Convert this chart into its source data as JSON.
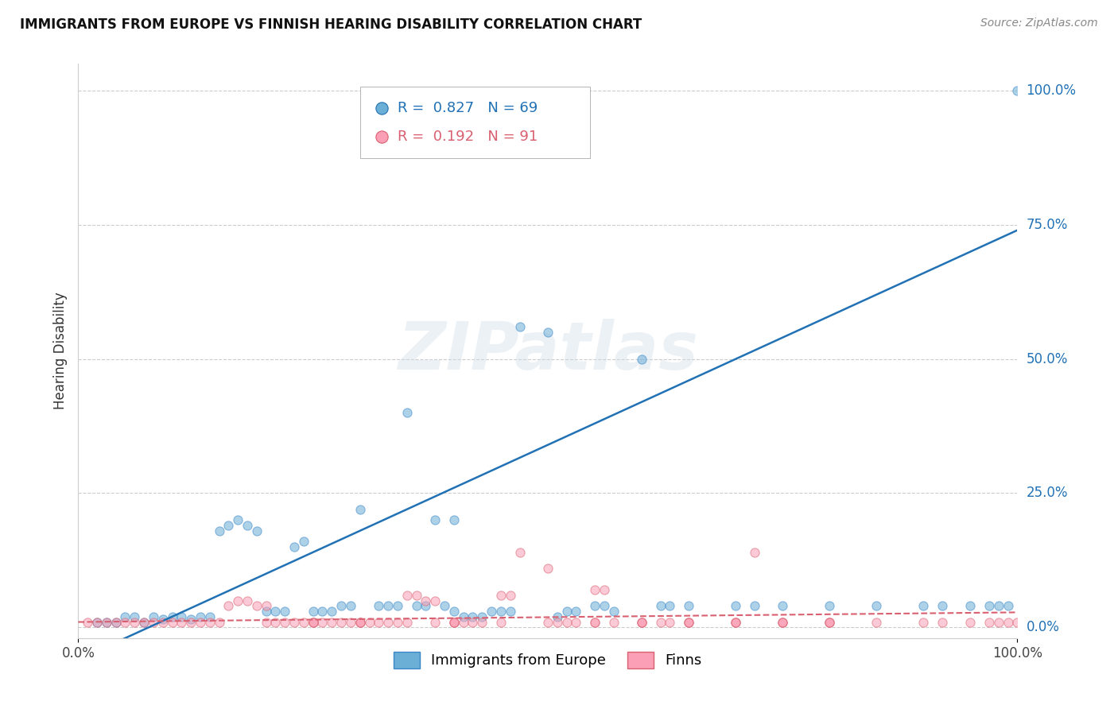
{
  "title": "IMMIGRANTS FROM EUROPE VS FINNISH HEARING DISABILITY CORRELATION CHART",
  "source": "Source: ZipAtlas.com",
  "ylabel": "Hearing Disability",
  "xlim": [
    0.0,
    1.0
  ],
  "ylim": [
    -0.02,
    1.05
  ],
  "ytick_labels": [
    "0.0%",
    "25.0%",
    "50.0%",
    "75.0%",
    "100.0%"
  ],
  "ytick_values": [
    0.0,
    0.25,
    0.5,
    0.75,
    1.0
  ],
  "xtick_labels": [
    "0.0%",
    "100.0%"
  ],
  "xtick_values": [
    0.0,
    1.0
  ],
  "grid_color": "#cccccc",
  "background_color": "#ffffff",
  "watermark": "ZIPatlas",
  "blue_R": 0.827,
  "blue_N": 69,
  "pink_R": 0.192,
  "pink_N": 91,
  "blue_color": "#6baed6",
  "pink_color": "#fa9fb5",
  "blue_line_color": "#2171b5",
  "pink_line_color": "#d96070",
  "blue_edge_color": "#3a87c8",
  "pink_edge_color": "#d96070",
  "blue_scatter_x": [
    0.02,
    0.03,
    0.04,
    0.05,
    0.06,
    0.07,
    0.08,
    0.09,
    0.1,
    0.11,
    0.12,
    0.13,
    0.14,
    0.15,
    0.16,
    0.17,
    0.18,
    0.19,
    0.2,
    0.21,
    0.22,
    0.23,
    0.24,
    0.25,
    0.26,
    0.27,
    0.28,
    0.29,
    0.3,
    0.32,
    0.33,
    0.34,
    0.35,
    0.36,
    0.37,
    0.38,
    0.4,
    0.41,
    0.42,
    0.43,
    0.44,
    0.45,
    0.46,
    0.47,
    0.5,
    0.51,
    0.52,
    0.53,
    0.55,
    0.56,
    0.57,
    0.6,
    0.62,
    0.63,
    0.65,
    0.7,
    0.72,
    0.75,
    0.8,
    0.85,
    0.9,
    0.92,
    0.95,
    0.97,
    0.98,
    0.99,
    1.0,
    0.39,
    0.4
  ],
  "blue_scatter_y": [
    0.01,
    0.01,
    0.01,
    0.02,
    0.02,
    0.01,
    0.02,
    0.015,
    0.02,
    0.02,
    0.015,
    0.02,
    0.02,
    0.18,
    0.19,
    0.2,
    0.19,
    0.18,
    0.03,
    0.03,
    0.03,
    0.15,
    0.16,
    0.03,
    0.03,
    0.03,
    0.04,
    0.04,
    0.22,
    0.04,
    0.04,
    0.04,
    0.4,
    0.04,
    0.04,
    0.2,
    0.2,
    0.02,
    0.02,
    0.02,
    0.03,
    0.03,
    0.03,
    0.56,
    0.55,
    0.02,
    0.03,
    0.03,
    0.04,
    0.04,
    0.03,
    0.5,
    0.04,
    0.04,
    0.04,
    0.04,
    0.04,
    0.04,
    0.04,
    0.04,
    0.04,
    0.04,
    0.04,
    0.04,
    0.04,
    0.04,
    1.0,
    0.04,
    0.03
  ],
  "pink_scatter_x": [
    0.01,
    0.02,
    0.03,
    0.04,
    0.05,
    0.06,
    0.07,
    0.08,
    0.09,
    0.1,
    0.11,
    0.12,
    0.13,
    0.14,
    0.15,
    0.16,
    0.17,
    0.18,
    0.19,
    0.2,
    0.21,
    0.22,
    0.23,
    0.24,
    0.25,
    0.26,
    0.27,
    0.28,
    0.29,
    0.3,
    0.31,
    0.32,
    0.33,
    0.34,
    0.35,
    0.36,
    0.37,
    0.38,
    0.4,
    0.41,
    0.42,
    0.43,
    0.45,
    0.46,
    0.47,
    0.5,
    0.51,
    0.52,
    0.53,
    0.55,
    0.56,
    0.57,
    0.6,
    0.62,
    0.63,
    0.65,
    0.7,
    0.72,
    0.75,
    0.8,
    0.85,
    0.9,
    0.92,
    0.95,
    0.97,
    0.98,
    0.99,
    1.0,
    0.38,
    0.4,
    0.25,
    0.3,
    0.35,
    0.4,
    0.45,
    0.5,
    0.55,
    0.6,
    0.65,
    0.7,
    0.75,
    0.8,
    0.6,
    0.65,
    0.7,
    0.75,
    0.8,
    0.55,
    0.2,
    0.25,
    0.3
  ],
  "pink_scatter_y": [
    0.01,
    0.01,
    0.01,
    0.01,
    0.01,
    0.01,
    0.01,
    0.01,
    0.01,
    0.01,
    0.01,
    0.01,
    0.01,
    0.01,
    0.01,
    0.04,
    0.05,
    0.05,
    0.04,
    0.04,
    0.01,
    0.01,
    0.01,
    0.01,
    0.01,
    0.01,
    0.01,
    0.01,
    0.01,
    0.01,
    0.01,
    0.01,
    0.01,
    0.01,
    0.06,
    0.06,
    0.05,
    0.05,
    0.01,
    0.01,
    0.01,
    0.01,
    0.06,
    0.06,
    0.14,
    0.11,
    0.01,
    0.01,
    0.01,
    0.07,
    0.07,
    0.01,
    0.01,
    0.01,
    0.01,
    0.01,
    0.01,
    0.14,
    0.01,
    0.01,
    0.01,
    0.01,
    0.01,
    0.01,
    0.01,
    0.01,
    0.01,
    0.01,
    0.01,
    0.01,
    0.01,
    0.01,
    0.01,
    0.01,
    0.01,
    0.01,
    0.01,
    0.01,
    0.01,
    0.01,
    0.01,
    0.01,
    0.01,
    0.01,
    0.01,
    0.01,
    0.01,
    0.01,
    0.01,
    0.01,
    0.01
  ],
  "legend_entries": [
    {
      "label": "Immigrants from Europe",
      "color": "#6baed6"
    },
    {
      "label": "Finns",
      "color": "#fa9fb5"
    }
  ]
}
